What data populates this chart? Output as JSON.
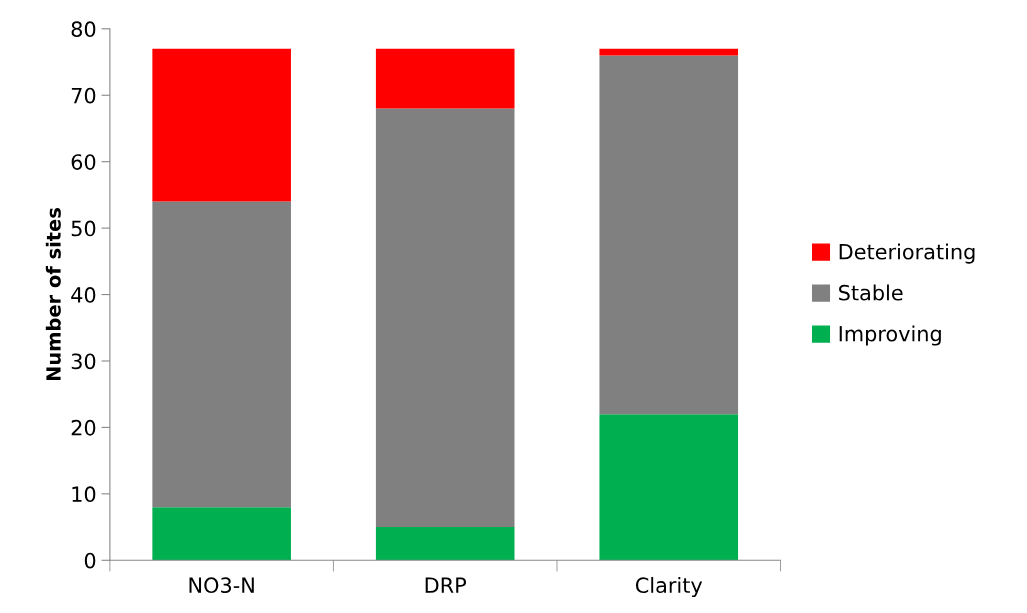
{
  "chart_data": {
    "type": "bar",
    "stacked": true,
    "ylabel": "Number of sites",
    "categories": [
      "NO3-N",
      "DRP",
      "Clarity"
    ],
    "series": [
      {
        "name": "Improving",
        "color": "#00b050",
        "values": [
          8,
          5,
          22
        ]
      },
      {
        "name": "Stable",
        "color": "#808080",
        "values": [
          46,
          63,
          54
        ]
      },
      {
        "name": "Deteriorating",
        "color": "#ff0000",
        "values": [
          23,
          9,
          1
        ]
      }
    ],
    "ylim": [
      0,
      80
    ],
    "yticks": [
      0,
      10,
      20,
      30,
      40,
      50,
      60,
      70,
      80
    ],
    "grid": false,
    "legend": "right"
  }
}
